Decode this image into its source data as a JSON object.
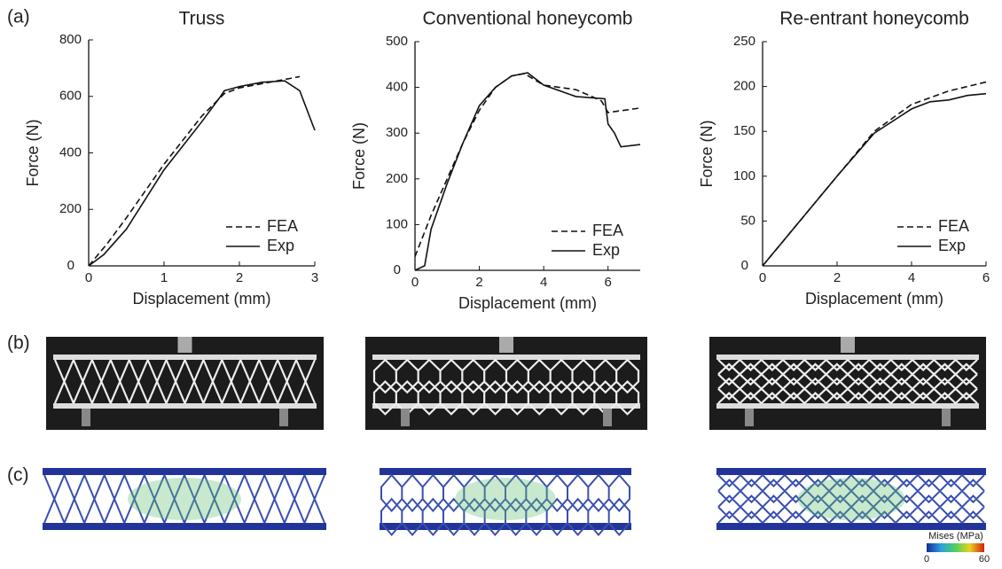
{
  "panel_labels": [
    "(a)",
    "(b)",
    "(c)"
  ],
  "colorbar": {
    "title": "Mises (MPa)",
    "ticks": [
      0,
      60
    ]
  },
  "chart_data": [
    {
      "type": "line",
      "title": "Truss",
      "xlabel": "Displacement (mm)",
      "ylabel": "Force (N)",
      "xlim": [
        0,
        3
      ],
      "ylim": [
        0,
        800
      ],
      "xticks": [
        0,
        1,
        2,
        3
      ],
      "yticks": [
        0,
        200,
        400,
        600,
        800
      ],
      "legend": "lower right",
      "series": [
        {
          "name": "FEA",
          "color": "#111111",
          "style": "dashed",
          "x": [
            0,
            0.25,
            0.5,
            1,
            1.5,
            1.8,
            2,
            2.4,
            2.8
          ],
          "values": [
            0,
            80,
            170,
            360,
            530,
            610,
            630,
            650,
            670
          ]
        },
        {
          "name": "Exp",
          "color": "#111111",
          "style": "solid",
          "x": [
            0,
            0.2,
            0.5,
            1,
            1.5,
            1.75,
            1.8,
            2,
            2.3,
            2.6,
            2.8,
            3
          ],
          "values": [
            0,
            40,
            130,
            340,
            510,
            600,
            620,
            635,
            650,
            655,
            620,
            480
          ]
        }
      ]
    },
    {
      "type": "line",
      "title": "Conventional honeycomb",
      "xlabel": "Displacement (mm)",
      "ylabel": "Force (N)",
      "xlim": [
        0,
        7
      ],
      "ylim": [
        0,
        500
      ],
      "xticks": [
        0,
        2,
        4,
        6
      ],
      "yticks": [
        0,
        100,
        200,
        300,
        400,
        500
      ],
      "legend": "lower right",
      "series": [
        {
          "name": "FEA",
          "color": "#111111",
          "style": "dashed",
          "x": [
            0,
            0.5,
            1,
            1.5,
            2,
            2.5,
            3,
            3.4,
            4,
            5,
            5.5,
            5.8,
            6,
            6.5,
            7
          ],
          "values": [
            30,
            120,
            200,
            280,
            350,
            400,
            425,
            430,
            405,
            395,
            380,
            370,
            345,
            350,
            355
          ]
        },
        {
          "name": "Exp",
          "color": "#111111",
          "style": "solid",
          "x": [
            0,
            0.3,
            0.5,
            1,
            1.5,
            2,
            2.5,
            3,
            3.5,
            4,
            5,
            5.9,
            6,
            6.2,
            6.4,
            7
          ],
          "values": [
            0,
            10,
            90,
            190,
            280,
            360,
            400,
            425,
            432,
            405,
            380,
            375,
            320,
            300,
            270,
            275
          ]
        }
      ]
    },
    {
      "type": "line",
      "title": "Re-entrant honeycomb",
      "xlabel": "Displacement (mm)",
      "ylabel": "Force (N)",
      "xlim": [
        0,
        6
      ],
      "ylim": [
        0,
        250
      ],
      "xticks": [
        0,
        2,
        4,
        6
      ],
      "yticks": [
        0,
        50,
        100,
        150,
        200,
        250
      ],
      "legend": "lower right",
      "series": [
        {
          "name": "FEA",
          "color": "#111111",
          "style": "dashed",
          "x": [
            0,
            1,
            2,
            3,
            4,
            5,
            6
          ],
          "values": [
            0,
            50,
            100,
            150,
            180,
            195,
            205
          ]
        },
        {
          "name": "Exp",
          "color": "#111111",
          "style": "solid",
          "x": [
            0,
            1,
            2,
            3,
            4,
            4.5,
            5,
            5.5,
            6
          ],
          "values": [
            0,
            50,
            100,
            148,
            175,
            183,
            185,
            190,
            192
          ]
        }
      ]
    }
  ]
}
